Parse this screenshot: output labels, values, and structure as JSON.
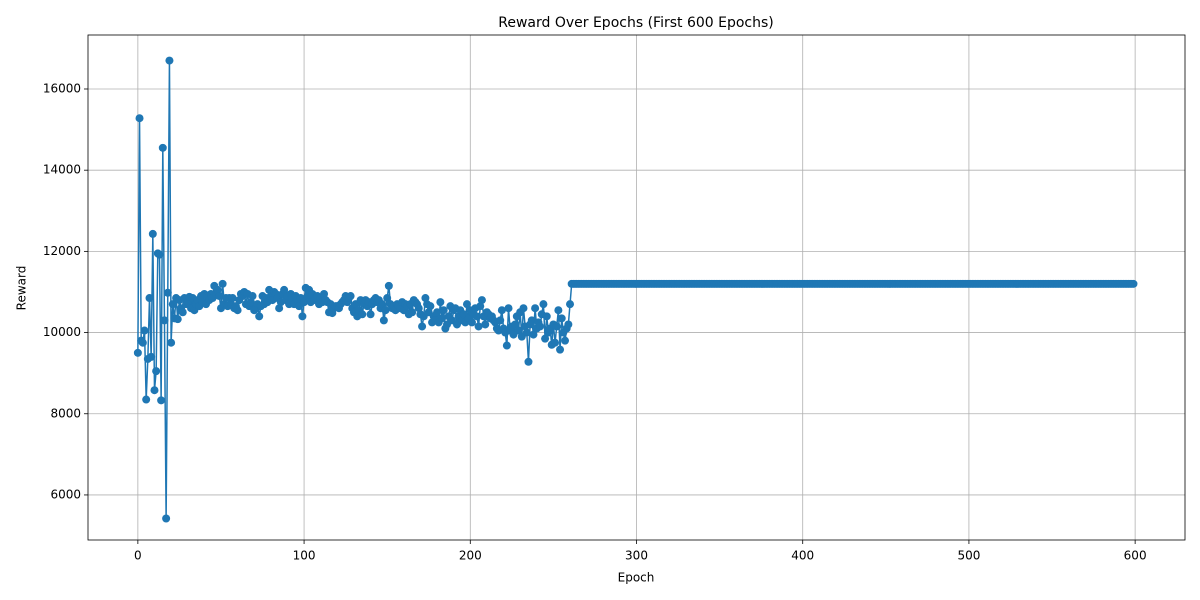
{
  "chart_data": {
    "type": "line",
    "title": "Reward Over Epochs (First 600 Epochs)",
    "xlabel": "Epoch",
    "ylabel": "Reward",
    "x": [
      0,
      1,
      2,
      3,
      4,
      5,
      6,
      7,
      8,
      9,
      10,
      11,
      12,
      13,
      14,
      15,
      16,
      17,
      18,
      19,
      20,
      21,
      22,
      23,
      24,
      25,
      26,
      27,
      28,
      29,
      30,
      31,
      32,
      33,
      34,
      35,
      36,
      37,
      38,
      39,
      40,
      41,
      42,
      43,
      44,
      45,
      46,
      47,
      48,
      49,
      50,
      51,
      52,
      53,
      54,
      55,
      56,
      57,
      58,
      59,
      60,
      61,
      62,
      63,
      64,
      65,
      66,
      67,
      68,
      69,
      70,
      71,
      72,
      73,
      74,
      75,
      76,
      77,
      78,
      79,
      80,
      81,
      82,
      83,
      84,
      85,
      86,
      87,
      88,
      89,
      90,
      91,
      92,
      93,
      94,
      95,
      96,
      97,
      98,
      99,
      100,
      101,
      102,
      103,
      104,
      105,
      106,
      107,
      108,
      109,
      110,
      111,
      112,
      113,
      114,
      115,
      116,
      117,
      118,
      119,
      120,
      121,
      122,
      123,
      124,
      125,
      126,
      127,
      128,
      129,
      130,
      131,
      132,
      133,
      134,
      135,
      136,
      137,
      138,
      139,
      140,
      141,
      142,
      143,
      144,
      145,
      146,
      147,
      148,
      149,
      150,
      151,
      152,
      153,
      154,
      155,
      156,
      157,
      158,
      159,
      160,
      161,
      162,
      163,
      164,
      165,
      166,
      167,
      168,
      169,
      170,
      171,
      172,
      173,
      174,
      175,
      176,
      177,
      178,
      179,
      180,
      181,
      182,
      183,
      184,
      185,
      186,
      187,
      188,
      189,
      190,
      191,
      192,
      193,
      194,
      195,
      196,
      197,
      198,
      199,
      200,
      201,
      202,
      203,
      204,
      205,
      206,
      207,
      208,
      209,
      210,
      211,
      212,
      213,
      214,
      215,
      216,
      217,
      218,
      219,
      220,
      221,
      222,
      223,
      224,
      225,
      226,
      227,
      228,
      229,
      230,
      231,
      232,
      233,
      234,
      235,
      236,
      237,
      238,
      239,
      240,
      241,
      242,
      243,
      244,
      245,
      246,
      247,
      248,
      249,
      250,
      251,
      252,
      253,
      254,
      255,
      256,
      257,
      258,
      259,
      260,
      261,
      262,
      263,
      264,
      265,
      266,
      267,
      268,
      269,
      270,
      271,
      272,
      273,
      274,
      275,
      276,
      277,
      278,
      279,
      280,
      281,
      282,
      283,
      284,
      285,
      286,
      287,
      288,
      289,
      290,
      291,
      292,
      293,
      294,
      295,
      296,
      297,
      298,
      299,
      300,
      301,
      302,
      303,
      304,
      305,
      306,
      307,
      308,
      309,
      310,
      311,
      312,
      313,
      314,
      315,
      316,
      317,
      318,
      319,
      320,
      321,
      322,
      323,
      324,
      325,
      326,
      327,
      328,
      329,
      330,
      331,
      332,
      333,
      334,
      335,
      336,
      337,
      338,
      339,
      340,
      341,
      342,
      343,
      344,
      345,
      346,
      347,
      348,
      349,
      350,
      351,
      352,
      353,
      354,
      355,
      356,
      357,
      358,
      359,
      360,
      361,
      362,
      363,
      364,
      365,
      366,
      367,
      368,
      369,
      370,
      371,
      372,
      373,
      374,
      375,
      376,
      377,
      378,
      379,
      380,
      381,
      382,
      383,
      384,
      385,
      386,
      387,
      388,
      389,
      390,
      391,
      392,
      393,
      394,
      395,
      396,
      397,
      398,
      399,
      400,
      401,
      402,
      403,
      404,
      405,
      406,
      407,
      408,
      409,
      410,
      411,
      412,
      413,
      414,
      415,
      416,
      417,
      418,
      419,
      420,
      421,
      422,
      423,
      424,
      425,
      426,
      427,
      428,
      429,
      430,
      431,
      432,
      433,
      434,
      435,
      436,
      437,
      438,
      439,
      440,
      441,
      442,
      443,
      444,
      445,
      446,
      447,
      448,
      449,
      450,
      451,
      452,
      453,
      454,
      455,
      456,
      457,
      458,
      459,
      460,
      461,
      462,
      463,
      464,
      465,
      466,
      467,
      468,
      469,
      470,
      471,
      472,
      473,
      474,
      475,
      476,
      477,
      478,
      479,
      480,
      481,
      482,
      483,
      484,
      485,
      486,
      487,
      488,
      489,
      490,
      491,
      492,
      493,
      494,
      495,
      496,
      497,
      498,
      499,
      500,
      501,
      502,
      503,
      504,
      505,
      506,
      507,
      508,
      509,
      510,
      511,
      512,
      513,
      514,
      515,
      516,
      517,
      518,
      519,
      520,
      521,
      522,
      523,
      524,
      525,
      526,
      527,
      528,
      529,
      530,
      531,
      532,
      533,
      534,
      535,
      536,
      537,
      538,
      539,
      540,
      541,
      542,
      543,
      544,
      545,
      546,
      547,
      548,
      549,
      550,
      551,
      552,
      553,
      554,
      555,
      556,
      557,
      558,
      559,
      560,
      561,
      562,
      563,
      564,
      565,
      566,
      567,
      568,
      569,
      570,
      571,
      572,
      573,
      574,
      575,
      576,
      577,
      578,
      579,
      580,
      581,
      582,
      583,
      584,
      585,
      586,
      587,
      588,
      589,
      590,
      591,
      592,
      593,
      594,
      595,
      596,
      597,
      598,
      599
    ],
    "series": [
      {
        "color": "#1f77b4",
        "values": [
          9500,
          15280,
          9800,
          9750,
          10050,
          8350,
          9350,
          10850,
          9400,
          12430,
          8580,
          9050,
          11950,
          11920,
          8330,
          14550,
          10300,
          5420,
          10980,
          16700,
          9750,
          10700,
          10350,
          10850,
          10330,
          10800,
          10600,
          10500,
          10850,
          10700,
          10750,
          10880,
          10600,
          10850,
          10550,
          10700,
          10800,
          10650,
          10900,
          10750,
          10950,
          10700,
          10900,
          10800,
          10950,
          10850,
          11150,
          10950,
          11050,
          10900,
          10600,
          11200,
          10700,
          10850,
          10650,
          10850,
          10700,
          10850,
          10600,
          10650,
          10550,
          10800,
          10950,
          10900,
          11000,
          10700,
          10950,
          10650,
          10750,
          10900,
          10550,
          10600,
          10700,
          10400,
          10650,
          10900,
          10700,
          10850,
          10750,
          11050,
          10900,
          10800,
          11000,
          10950,
          10850,
          10600,
          10750,
          10950,
          11050,
          10800,
          10900,
          10700,
          10950,
          10850,
          10700,
          10900,
          10800,
          10650,
          10850,
          10400,
          10750,
          11100,
          10900,
          11050,
          10750,
          10950,
          10800,
          10850,
          10900,
          10700,
          10850,
          10750,
          10950,
          10800,
          10750,
          10500,
          10700,
          10480,
          10600,
          10650,
          10650,
          10600,
          10700,
          10750,
          10800,
          10900,
          10750,
          10850,
          10900,
          10600,
          10500,
          10700,
          10400,
          10550,
          10800,
          10450,
          10700,
          10800,
          10650,
          10750,
          10450,
          10700,
          10800,
          10850,
          10750,
          10800,
          10600,
          10700,
          10300,
          10550,
          10850,
          11150,
          10700,
          10600,
          10650,
          10550,
          10700,
          10650,
          10600,
          10750,
          10550,
          10700,
          10650,
          10450,
          10700,
          10500,
          10800,
          10750,
          10700,
          10600,
          10450,
          10150,
          10400,
          10850,
          10700,
          10500,
          10650,
          10250,
          10400,
          10300,
          10500,
          10250,
          10750,
          10350,
          10550,
          10100,
          10200,
          10400,
          10650,
          10300,
          10550,
          10600,
          10200,
          10400,
          10550,
          10300,
          10450,
          10250,
          10700,
          10350,
          10550,
          10250,
          10450,
          10600,
          10400,
          10150,
          10650,
          10800,
          10400,
          10200,
          10500,
          10450,
          10350,
          10400,
          10300,
          10250,
          10100,
          10050,
          10300,
          10550,
          10100,
          10000,
          9680,
          10600,
          10050,
          10150,
          9950,
          10200,
          10400,
          10050,
          10500,
          9900,
          10600,
          10150,
          10000,
          9280,
          10200,
          10300,
          9950,
          10600,
          10100,
          10250,
          10150,
          10450,
          10700,
          9850,
          10400,
          10000,
          10100,
          9700,
          10200,
          9750,
          10150,
          10550,
          9580,
          10350,
          10000,
          9800,
          10100,
          10200,
          10700,
          11200,
          11200,
          11200,
          11200,
          11200,
          11200,
          11200,
          11200,
          11200,
          11200,
          11200,
          11200,
          11200,
          11200,
          11200,
          11200,
          11200,
          11200,
          11200,
          11200,
          11200,
          11200,
          11200,
          11200,
          11200,
          11200,
          11200,
          11200,
          11200,
          11200,
          11200,
          11200,
          11200,
          11200,
          11200,
          11200,
          11200,
          11200,
          11200,
          11200,
          11200,
          11200,
          11200,
          11200,
          11200,
          11200,
          11200,
          11200,
          11200,
          11200,
          11200,
          11200,
          11200,
          11200,
          11200,
          11200,
          11200,
          11200,
          11200,
          11200,
          11200,
          11200,
          11200,
          11200,
          11200,
          11200,
          11200,
          11200,
          11200,
          11200,
          11200,
          11200,
          11200,
          11200,
          11200,
          11200,
          11200,
          11200,
          11200,
          11200,
          11200,
          11200,
          11200,
          11200,
          11200,
          11200,
          11200,
          11200,
          11200,
          11200,
          11200,
          11200,
          11200,
          11200,
          11200,
          11200,
          11200,
          11200,
          11200,
          11200,
          11200,
          11200,
          11200,
          11200,
          11200,
          11200,
          11200,
          11200,
          11200,
          11200,
          11200,
          11200,
          11200,
          11200,
          11200,
          11200,
          11200,
          11200,
          11200,
          11200,
          11200,
          11200,
          11200,
          11200,
          11200,
          11200,
          11200,
          11200,
          11200,
          11200,
          11200,
          11200,
          11200,
          11200,
          11200,
          11200,
          11200,
          11200,
          11200,
          11200,
          11200,
          11200,
          11200,
          11200,
          11200,
          11200,
          11200,
          11200,
          11200,
          11200,
          11200,
          11200,
          11200,
          11200,
          11200,
          11200,
          11200,
          11200,
          11200,
          11200,
          11200,
          11200,
          11200,
          11200,
          11200,
          11200,
          11200,
          11200,
          11200,
          11200,
          11200,
          11200,
          11200,
          11200,
          11200,
          11200,
          11200,
          11200,
          11200,
          11200,
          11200,
          11200,
          11200,
          11200,
          11200,
          11200,
          11200,
          11200,
          11200,
          11200,
          11200,
          11200,
          11200,
          11200,
          11200,
          11200,
          11200,
          11200,
          11200,
          11200,
          11200,
          11200,
          11200,
          11200,
          11200,
          11200,
          11200,
          11200,
          11200,
          11200,
          11200,
          11200,
          11200,
          11200,
          11200,
          11200,
          11200,
          11200,
          11200,
          11200,
          11200,
          11200,
          11200,
          11200,
          11200,
          11200,
          11200,
          11200,
          11200,
          11200,
          11200,
          11200,
          11200,
          11200,
          11200,
          11200,
          11200,
          11200,
          11200,
          11200,
          11200,
          11200,
          11200,
          11200,
          11200,
          11200,
          11200,
          11200,
          11200,
          11200,
          11200,
          11200,
          11200,
          11200,
          11200,
          11200,
          11200,
          11200,
          11200,
          11200,
          11200,
          11200,
          11200,
          11200,
          11200,
          11200,
          11200,
          11200,
          11200,
          11200,
          11200,
          11200,
          11200,
          11200,
          11200,
          11200,
          11200,
          11200,
          11200,
          11200,
          11200,
          11200,
          11200,
          11200,
          11200,
          11200,
          11200,
          11200,
          11200,
          11200,
          11200,
          11200,
          11200,
          11200,
          11200,
          11200,
          11200,
          11200,
          11200,
          11200,
          11200,
          11200,
          11200,
          11200,
          11200,
          11200,
          11200,
          11200,
          11200,
          11200,
          11200,
          11200,
          11200,
          11200,
          11200,
          11200,
          11200,
          11200,
          11200,
          11200,
          11200,
          11200,
          11200,
          11200,
          11200,
          11200,
          11200,
          11200,
          11200,
          11200,
          11200,
          11200,
          11200,
          11200,
          11200,
          11200,
          11200,
          11200,
          11200
        ]
      }
    ],
    "xlim": [
      -30,
      630
    ],
    "xticks": [
      0,
      100,
      200,
      300,
      400,
      500,
      600
    ],
    "ylim": [
      4890,
      17330
    ],
    "yticks": [
      6000,
      8000,
      10000,
      12000,
      14000,
      16000
    ],
    "grid": true,
    "marker": true
  }
}
